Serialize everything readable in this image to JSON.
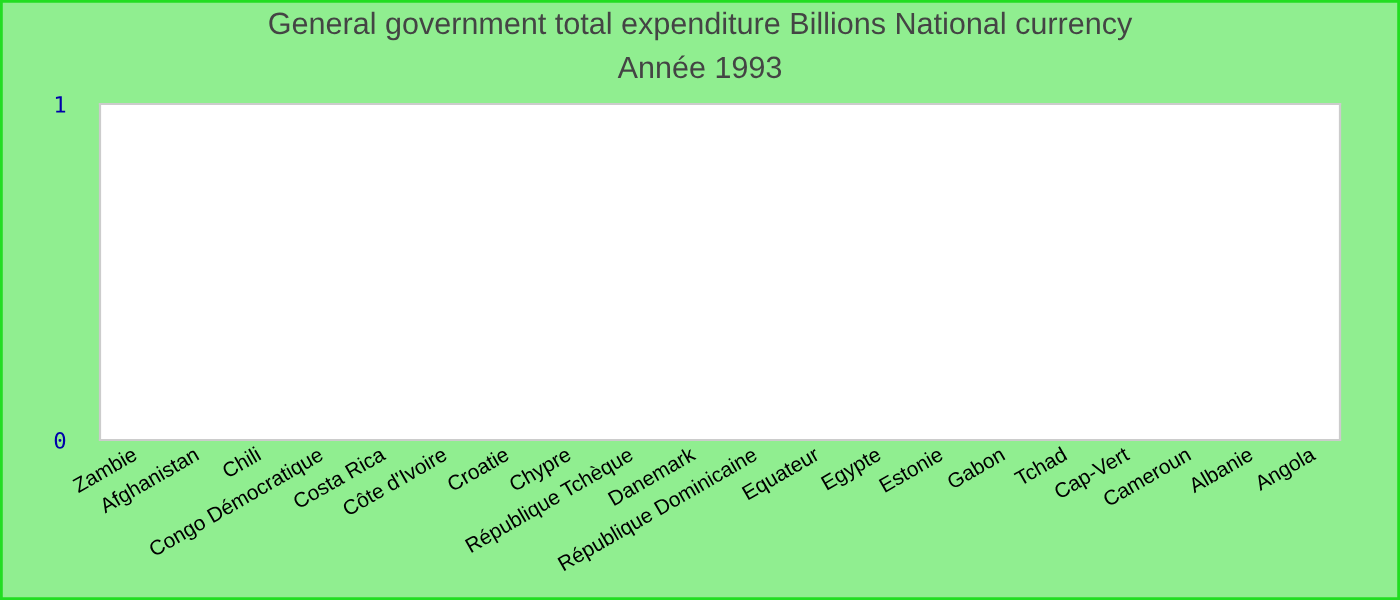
{
  "chart_data": {
    "type": "bar",
    "title": "General government total expenditure Billions National currency",
    "subtitle": "Année 1993",
    "categories": [
      "Zambie",
      "Afghanistan",
      "Chili",
      "Congo Démocratique",
      "Costa Rica",
      "Côte d'Ivoire",
      "Croatie",
      "Chypre",
      "République Tchèque",
      "Danemark",
      "République Dominicaine",
      "Equateur",
      "Egypte",
      "Estonie",
      "Gabon",
      "Tchad",
      "Cap-Vert",
      "Cameroun",
      "Albanie",
      "Angola"
    ],
    "values": [
      null,
      null,
      null,
      null,
      null,
      null,
      null,
      null,
      null,
      null,
      null,
      null,
      null,
      null,
      null,
      null,
      null,
      null,
      null,
      null
    ],
    "ylim": [
      0,
      1
    ],
    "yticks": [
      0,
      1
    ],
    "grid": false,
    "legend": false
  }
}
